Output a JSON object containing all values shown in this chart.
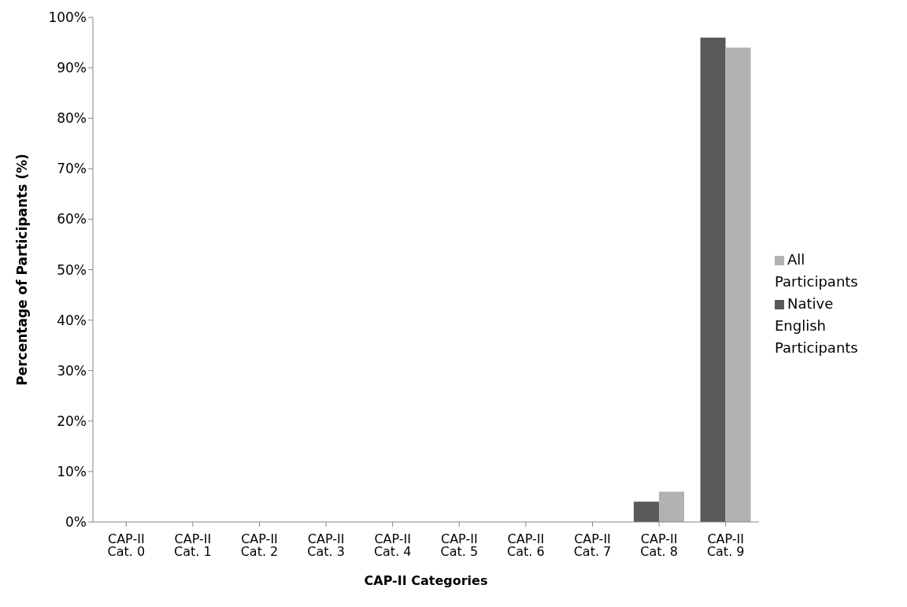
{
  "chart_data": {
    "type": "bar",
    "xlabel": "CAP-II Categories",
    "ylabel": "Percentage of Participants (%)",
    "categories": [
      "CAP-II Cat. 0",
      "CAP-II Cat. 1",
      "CAP-II Cat. 2",
      "CAP-II Cat. 3",
      "CAP-II Cat. 4",
      "CAP-II Cat. 5",
      "CAP-II Cat. 6",
      "CAP-II Cat. 7",
      "CAP-II Cat. 8",
      "CAP-II Cat. 9"
    ],
    "series": [
      {
        "name": "Native English Participants",
        "color": "#595959",
        "values": [
          0,
          0,
          0,
          0,
          0,
          0,
          0,
          0,
          4,
          96
        ]
      },
      {
        "name": "All Participants",
        "color": "#b2b2b2",
        "values": [
          0,
          0,
          0,
          0,
          0,
          0,
          0,
          0,
          6,
          94
        ]
      }
    ],
    "ylim": [
      0,
      100
    ],
    "yticks": [
      {
        "value": 0,
        "label": "0%"
      },
      {
        "value": 10,
        "label": "10%"
      },
      {
        "value": 20,
        "label": "20%"
      },
      {
        "value": 30,
        "label": "30%"
      },
      {
        "value": 40,
        "label": "40%"
      },
      {
        "value": 50,
        "label": "50%"
      },
      {
        "value": 60,
        "label": "60%"
      },
      {
        "value": 70,
        "label": "70%"
      },
      {
        "value": 80,
        "label": "80%"
      },
      {
        "value": 90,
        "label": "90%"
      },
      {
        "value": 100,
        "label": "100%"
      }
    ],
    "grid": false,
    "legend": "right"
  }
}
